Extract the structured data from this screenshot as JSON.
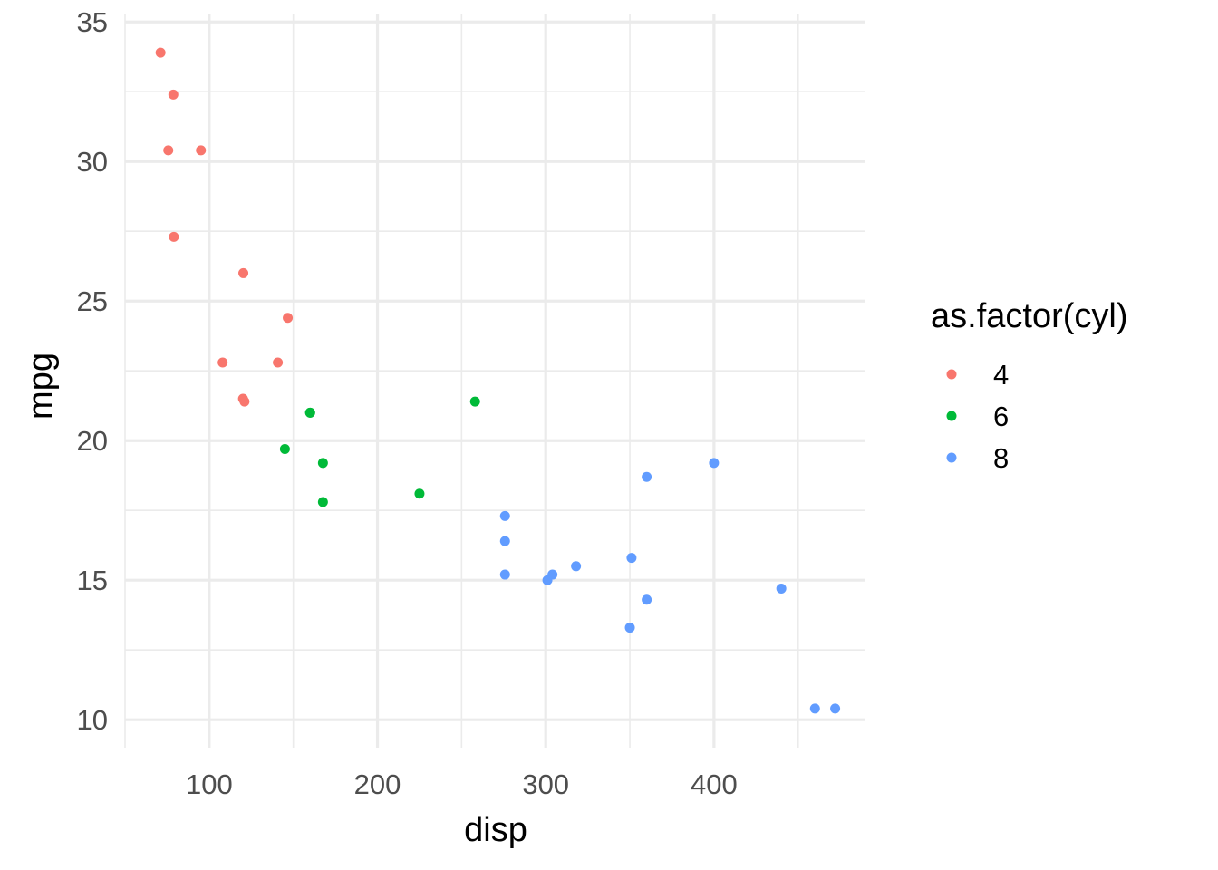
{
  "chart_data": {
    "type": "scatter",
    "title": "",
    "xlabel": "disp",
    "ylabel": "mpg",
    "xlim": [
      50,
      490
    ],
    "ylim": [
      9,
      35.3
    ],
    "x_ticks": [
      100,
      200,
      300,
      400
    ],
    "y_ticks": [
      10,
      15,
      20,
      25,
      30,
      35
    ],
    "grid": true,
    "legend": {
      "title": "as.factor(cyl)",
      "position": "right",
      "entries": [
        "4",
        "6",
        "8"
      ]
    },
    "series": [
      {
        "name": "4",
        "color": "#F8766D",
        "points": [
          {
            "x": 108,
            "y": 22.8
          },
          {
            "x": 146.7,
            "y": 24.4
          },
          {
            "x": 140.8,
            "y": 22.8
          },
          {
            "x": 78.7,
            "y": 32.4
          },
          {
            "x": 75.7,
            "y": 30.4
          },
          {
            "x": 71.1,
            "y": 33.9
          },
          {
            "x": 120.1,
            "y": 21.5
          },
          {
            "x": 79,
            "y": 27.3
          },
          {
            "x": 120.3,
            "y": 26.0
          },
          {
            "x": 95.1,
            "y": 30.4
          },
          {
            "x": 121,
            "y": 21.4
          }
        ]
      },
      {
        "name": "6",
        "color": "#00BA38",
        "points": [
          {
            "x": 160,
            "y": 21.0
          },
          {
            "x": 160,
            "y": 21.0
          },
          {
            "x": 258,
            "y": 21.4
          },
          {
            "x": 225,
            "y": 18.1
          },
          {
            "x": 167.6,
            "y": 19.2
          },
          {
            "x": 167.6,
            "y": 17.8
          },
          {
            "x": 145,
            "y": 19.7
          }
        ]
      },
      {
        "name": "8",
        "color": "#619CFF",
        "points": [
          {
            "x": 360,
            "y": 18.7
          },
          {
            "x": 360,
            "y": 14.3
          },
          {
            "x": 275.8,
            "y": 16.4
          },
          {
            "x": 275.8,
            "y": 17.3
          },
          {
            "x": 275.8,
            "y": 15.2
          },
          {
            "x": 472,
            "y": 10.4
          },
          {
            "x": 460,
            "y": 10.4
          },
          {
            "x": 440,
            "y": 14.7
          },
          {
            "x": 318,
            "y": 15.5
          },
          {
            "x": 304,
            "y": 15.2
          },
          {
            "x": 350,
            "y": 13.3
          },
          {
            "x": 400,
            "y": 19.2
          },
          {
            "x": 351,
            "y": 15.8
          },
          {
            "x": 301,
            "y": 15.0
          }
        ]
      }
    ]
  }
}
